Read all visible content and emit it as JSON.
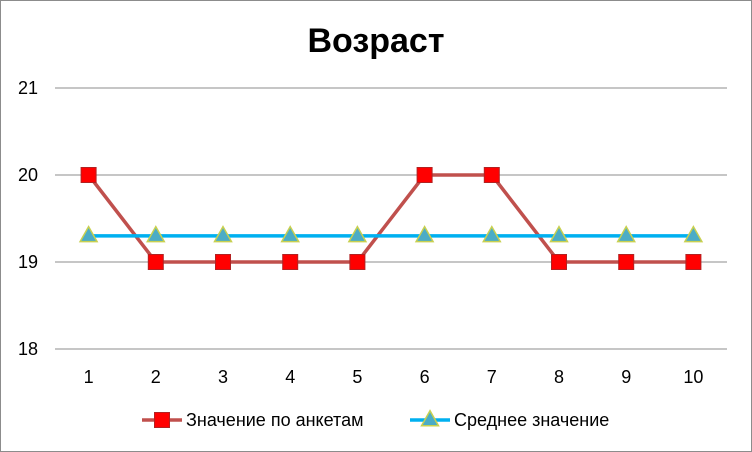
{
  "chart_data": {
    "type": "line",
    "title": "Возраст",
    "xlabel": "",
    "ylabel": "",
    "categories": [
      "1",
      "2",
      "3",
      "4",
      "5",
      "6",
      "7",
      "8",
      "9",
      "10"
    ],
    "y_ticks": [
      "18",
      "19",
      "20",
      "21"
    ],
    "ylim": [
      18,
      21
    ],
    "grid": true,
    "legend_position": "bottom",
    "series": [
      {
        "name": "Значение по анкетам",
        "values": [
          20,
          19,
          19,
          19,
          19,
          20,
          20,
          19,
          19,
          19
        ],
        "line_color": "#c0504d",
        "marker": "square",
        "marker_color": "#ff0000"
      },
      {
        "name": "Среднее значение",
        "values": [
          19.3,
          19.3,
          19.3,
          19.3,
          19.3,
          19.3,
          19.3,
          19.3,
          19.3,
          19.3
        ],
        "line_color": "#00b0f0",
        "marker": "triangle",
        "marker_color": "#4bacc6",
        "marker_edge_color": "#c8d050"
      }
    ]
  }
}
